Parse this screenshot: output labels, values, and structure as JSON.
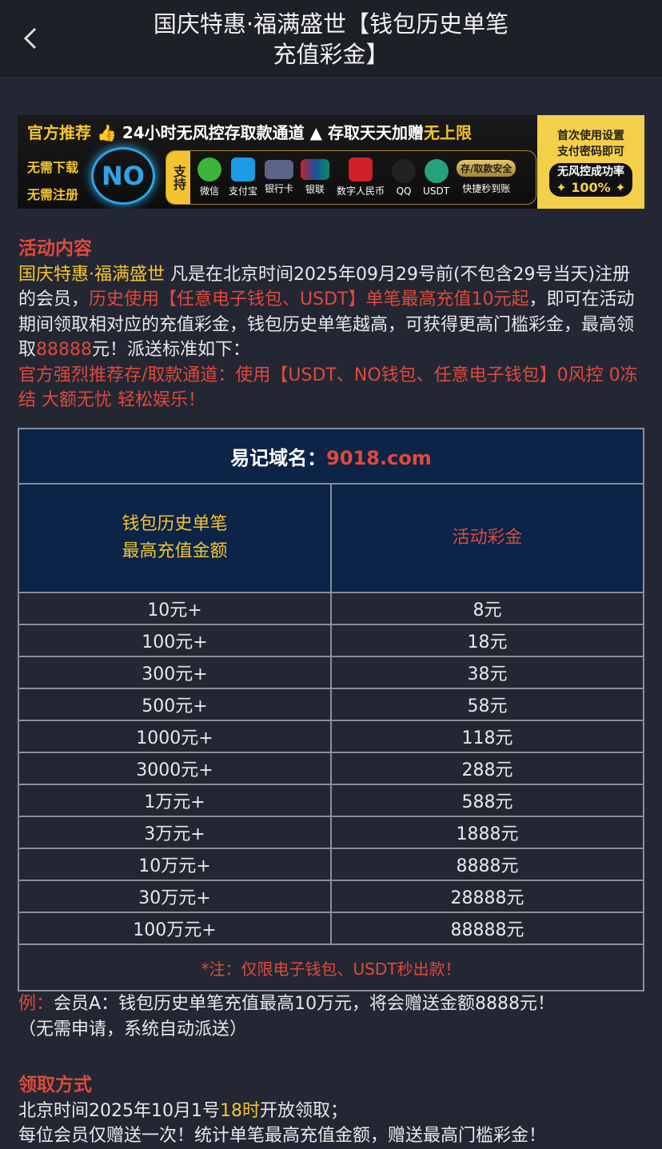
{
  "header": {
    "title": "国庆特惠·福满盛世【钱包历史单笔充值彩金】",
    "back_icon": "chevron-left-icon"
  },
  "banner": {
    "top_a": "官方推荐",
    "top_b": "24小时无风控存取款通道",
    "top_c": "存取天天加赠",
    "top_d": "无上限",
    "left1": "无需下载",
    "left2": "无需注册",
    "logo": "NO",
    "support": "支持",
    "methods": [
      "微信",
      "支付宝",
      "银行卡",
      "银联",
      "数字人民币",
      "QQ",
      "USDT"
    ],
    "safe": "存/取款安全",
    "fast": "快捷秒到账",
    "right1": "首次使用设置",
    "right2": "支付密码即可",
    "right3": "无风控成功率",
    "right4": "✦ 100% ✦"
  },
  "content": {
    "heading": "活动内容",
    "p1_a": "国庆特惠·福满盛世",
    "p1_b": " 凡是在北京时间2025年09月29号前(不包含29号当天)注册的会员，",
    "p1_c": "历史使用【任意电子钱包、USDT】单笔最高充值10元起",
    "p1_d": "，即可在活动期间领取相对应的充值彩金，钱包历史单笔越高，可获得更高门槛彩金，最高领取",
    "p1_e": "88888",
    "p1_f": "元！派送标准如下：",
    "p2": "官方强烈推荐存/取款通道：使用【USDT、NO钱包、任意电子钱包】0风控 0冻结 大额无忧 轻松娱乐！"
  },
  "table": {
    "domain_label": "易记域名：",
    "domain": "9018.com",
    "col1_l1": "钱包历史单笔",
    "col1_l2": "最高充值金额",
    "col2": "活动彩金",
    "rows": [
      [
        "10元+",
        "8元"
      ],
      [
        "100元+",
        "18元"
      ],
      [
        "300元+",
        "38元"
      ],
      [
        "500元+",
        "58元"
      ],
      [
        "1000元+",
        "118元"
      ],
      [
        "3000元+",
        "288元"
      ],
      [
        "1万元+",
        "588元"
      ],
      [
        "3万元+",
        "1888元"
      ],
      [
        "10万元+",
        "8888元"
      ],
      [
        "30万元+",
        "28888元"
      ],
      [
        "100万元+",
        "88888元"
      ]
    ],
    "note": "*注：仅限电子钱包、USDT秒出款！"
  },
  "example": {
    "label": "例：",
    "text": "会员A：钱包历史单笔充值最高10万元，将会赠送金额8888元！",
    "sub": "（无需申请，系统自动派送）"
  },
  "claim": {
    "heading": "领取方式",
    "l1_a": "北京时间2025年10月1号",
    "l1_b": "18时",
    "l1_c": "开放领取；",
    "l2": "每位会员仅赠送一次！统计单笔最高充值金额，赠送最高门槛彩金！"
  }
}
